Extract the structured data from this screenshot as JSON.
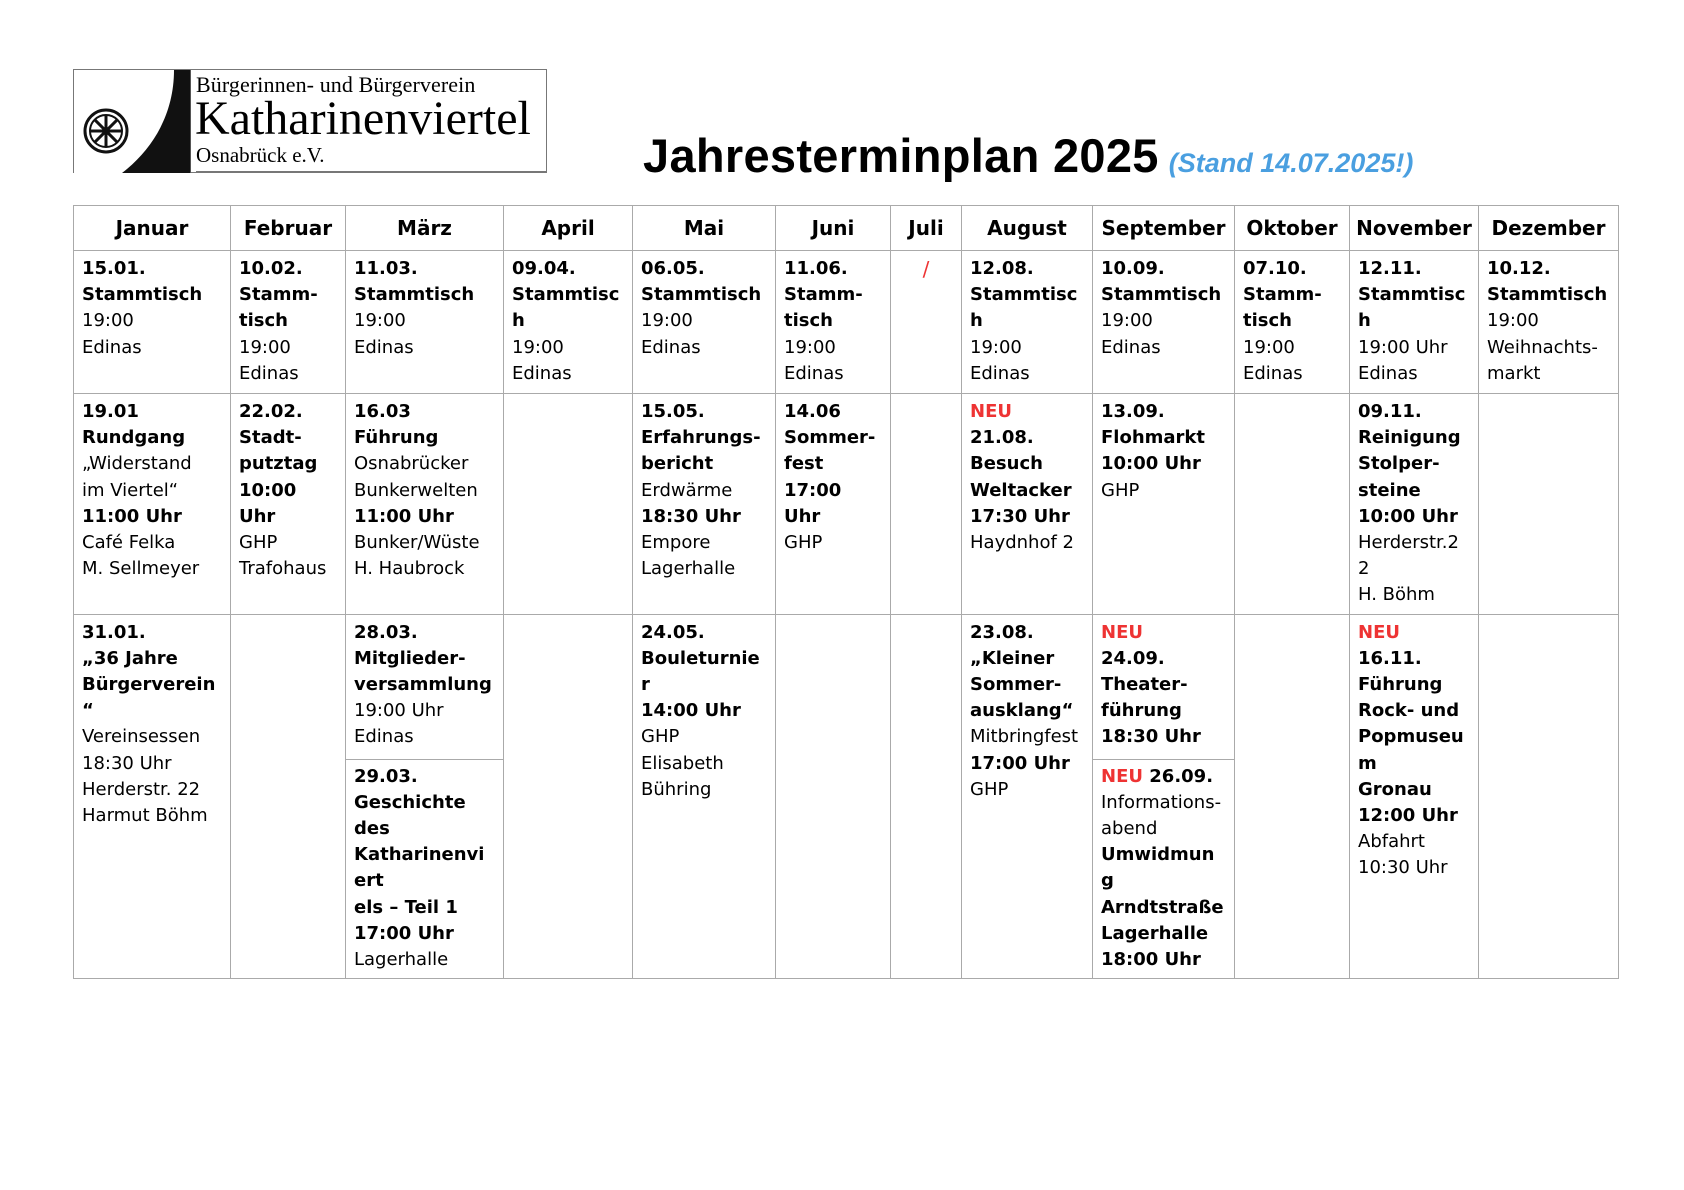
{
  "logo": {
    "line1": "Bürgerinnen- und Bürgerverein",
    "line2": "Katharinenviertel",
    "line3": "Osnabrück e.V."
  },
  "title": {
    "main": "Jahresterminplan 2025",
    "stand": "(Stand 14.07.2025!)"
  },
  "colors": {
    "stand": "#4a9fe0",
    "neu": "#e33333"
  },
  "months": [
    "Januar",
    "Februar",
    "März",
    "April",
    "Mai",
    "Juni",
    "Juli",
    "August",
    "September",
    "Oktober",
    "November",
    "Dezember"
  ],
  "row1": {
    "jan": {
      "date": "15.01.",
      "title": "Stammtisch",
      "time": "19:00",
      "place": "Edinas"
    },
    "feb": {
      "date": "10.02.",
      "title1": "Stamm-",
      "title2": "tisch",
      "time": "19:00",
      "place": "Edinas"
    },
    "mar": {
      "date": "11.03.",
      "title": "Stammtisch",
      "time": "19:00",
      "place": "Edinas"
    },
    "apr": {
      "date": "09.04.",
      "title": "Stammtisch",
      "time": "19:00",
      "place": "Edinas"
    },
    "mai": {
      "date": "06.05.",
      "title": "Stammtisch",
      "time": "19:00",
      "place": "Edinas"
    },
    "jun": {
      "date": "11.06.",
      "title1": "Stamm-",
      "title2": "tisch",
      "time": "19:00",
      "place": "Edinas"
    },
    "jul": {
      "text": "/"
    },
    "aug": {
      "date": "12.08.",
      "title": "Stammtisch",
      "time": "19:00",
      "place": "Edinas"
    },
    "sep": {
      "date": "10.09.",
      "title": "Stammtisch",
      "time": "19:00",
      "place": "Edinas"
    },
    "okt": {
      "date": "07.10.",
      "title1": "Stamm-",
      "title2": "tisch",
      "time": "19:00",
      "place": "Edinas"
    },
    "nov": {
      "date": "12.11.",
      "title": "Stammtisch",
      "time": "19:00 Uhr",
      "place": "Edinas"
    },
    "dez": {
      "date": "10.12.",
      "title": "Stammtisch",
      "time": "19:00",
      "place1": "Weihnachts-",
      "place2": "markt"
    }
  },
  "row2": {
    "jan": {
      "date": "19.01",
      "title": "Rundgang",
      "sub1": "„Widerstand",
      "sub2": "im Viertel“",
      "time": "11:00 Uhr",
      "place": "Café Felka",
      "person": "M. Sellmeyer"
    },
    "feb": {
      "date": "22.02.",
      "title1": "Stadt-",
      "title2": "putztag",
      "time": "10:00 Uhr",
      "place1": "GHP",
      "place2": "Trafohaus"
    },
    "mar": {
      "date": "16.03",
      "title": "Führung",
      "sub1": "Osnabrücker",
      "sub2": "Bunkerwelten",
      "time": "11:00 Uhr",
      "place": "Bunker/Wüste",
      "person": "H. Haubrock"
    },
    "mai": {
      "date": "15.05.",
      "title1": "Erfahrungs-",
      "title2": "bericht",
      "sub": "Erdwärme",
      "time": "18:30 Uhr",
      "place1": "Empore",
      "place2": "Lagerhalle"
    },
    "jun": {
      "date": "14.06",
      "title1": "Sommer-",
      "title2": "fest",
      "time": "17:00 Uhr",
      "place": "GHP"
    },
    "aug": {
      "neu": "NEU",
      "date": "21.08.",
      "title1": "Besuch",
      "title2": "Weltacker",
      "time": "17:30 Uhr",
      "place": "Haydnhof 2"
    },
    "sep": {
      "date": "13.09.",
      "title": "Flohmarkt",
      "time": "10:00 Uhr",
      "place": "GHP"
    },
    "nov": {
      "date": "09.11.",
      "title1": "Reinigung",
      "title2": "Stolper-",
      "title3": "steine",
      "time": "10:00 Uhr",
      "place": "Herderstr.22",
      "person": "H. Böhm"
    }
  },
  "row3": {
    "jan": {
      "date": "31.01.",
      "title1": "„36 Jahre",
      "title2": "Bürgerverein“",
      "sub": "Vereinsessen",
      "time": "18:30 Uhr",
      "place": "Herderstr. 22",
      "person": "Harmut Böhm"
    },
    "mar_a": {
      "date": "28.03.",
      "title1": "Mitglieder-",
      "title2": "versammlung",
      "time": "19:00 Uhr",
      "place": "Edinas"
    },
    "mar_b": {
      "date": "29.03.",
      "title1": "Geschichte des",
      "title2": "Katharinenviert",
      "title3": "els – Teil 1",
      "time": "17:00 Uhr",
      "place": "Lagerhalle"
    },
    "mai": {
      "date": "24.05.",
      "title": "Bouleturnier",
      "time": "14:00 Uhr",
      "place1": "GHP",
      "place2": "Elisabeth",
      "place3": "Bühring"
    },
    "aug": {
      "date": "23.08.",
      "title1": "„Kleiner",
      "title2": "Sommer-",
      "title3": "ausklang“",
      "sub": "Mitbringfest",
      "time": "17:00 Uhr",
      "place": "GHP"
    },
    "sep_a": {
      "neu": "NEU",
      "date": "24.09.",
      "title1": "Theater-",
      "title2": "führung",
      "time": "18:30 Uhr"
    },
    "sep_b": {
      "neu": "NEU",
      "date": "26.09.",
      "sub1": "Informations-",
      "sub2": "abend",
      "title1": "Umwidmung",
      "title2": "Arndtstraße",
      "title3": "Lagerhalle",
      "time": "18:00 Uhr"
    },
    "nov": {
      "neu": "NEU",
      "date": "16.11.",
      "title1": "Führung",
      "title2": "Rock- und",
      "title3": "Popmuseum",
      "title4": "Gronau",
      "time": "12:00 Uhr",
      "sub1": "Abfahrt",
      "sub2": "10:30 Uhr"
    }
  }
}
